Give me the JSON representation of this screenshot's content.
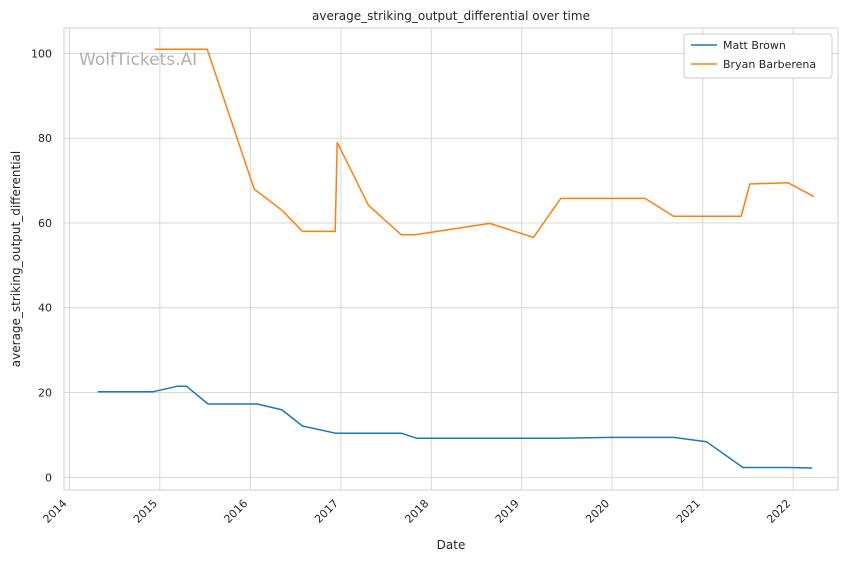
{
  "chart_data": {
    "type": "line",
    "title": "average_striking_output_differential over time",
    "xlabel": "Date",
    "ylabel": "average_striking_output_differential",
    "watermark": "WolfTickets.AI",
    "x_ticks": [
      "2014",
      "2015",
      "2016",
      "2017",
      "2018",
      "2019",
      "2020",
      "2021",
      "2022"
    ],
    "y_ticks": [
      0,
      20,
      40,
      60,
      80,
      100
    ],
    "xlim": [
      "2013-12-10",
      "2022-07-01"
    ],
    "ylim": [
      -3,
      106
    ],
    "grid": true,
    "legend_position": "top-right",
    "series": [
      {
        "name": "Matt Brown",
        "color": "#1f77b4",
        "points": [
          [
            "2014-04-26",
            20.2
          ],
          [
            "2014-12-06",
            20.2
          ],
          [
            "2015-03-14",
            21.5
          ],
          [
            "2015-04-18",
            21.5
          ],
          [
            "2015-07-15",
            17.3
          ],
          [
            "2016-01-30",
            17.3
          ],
          [
            "2016-05-08",
            15.9
          ],
          [
            "2016-07-30",
            12.1
          ],
          [
            "2016-12-10",
            10.4
          ],
          [
            "2017-09-02",
            10.4
          ],
          [
            "2017-11-04",
            9.2
          ],
          [
            "2019-06-01",
            9.2
          ],
          [
            "2020-01-01",
            9.4
          ],
          [
            "2020-09-05",
            9.4
          ],
          [
            "2021-01-16",
            8.4
          ],
          [
            "2021-06-12",
            2.3
          ],
          [
            "2021-12-11",
            2.3
          ],
          [
            "2022-03-19",
            2.2
          ]
        ]
      },
      {
        "name": "Bryan Barberena",
        "color": "#ff7f0e",
        "points": [
          [
            "2014-12-12",
            101.0
          ],
          [
            "2015-07-11",
            101.0
          ],
          [
            "2016-01-17",
            68.0
          ],
          [
            "2016-05-08",
            63.0
          ],
          [
            "2016-07-30",
            58.0
          ],
          [
            "2016-12-09",
            58.0
          ],
          [
            "2016-12-17",
            79.0
          ],
          [
            "2017-04-22",
            64.2
          ],
          [
            "2017-09-02",
            57.2
          ],
          [
            "2017-10-28",
            57.2
          ],
          [
            "2018-08-25",
            59.9
          ],
          [
            "2019-02-17",
            56.6
          ],
          [
            "2019-06-08",
            65.8
          ],
          [
            "2020-05-13",
            65.8
          ],
          [
            "2020-09-05",
            61.6
          ],
          [
            "2021-06-05",
            61.6
          ],
          [
            "2021-07-10",
            69.2
          ],
          [
            "2021-12-11",
            69.5
          ],
          [
            "2022-03-26",
            66.2
          ]
        ]
      }
    ]
  }
}
